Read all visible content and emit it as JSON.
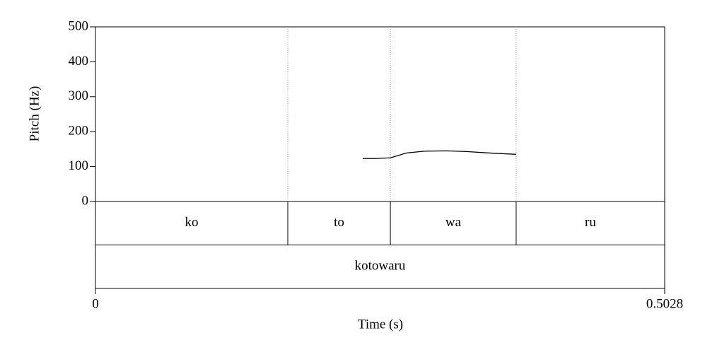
{
  "chart_data": {
    "type": "line",
    "xlabel": "Time (s)",
    "ylabel": "Pitch (Hz)",
    "xlim": [
      0,
      0.5028
    ],
    "xticks": [
      0,
      0.5028
    ],
    "ylim": [
      0,
      500
    ],
    "yticks": [
      0,
      100,
      200,
      300,
      400,
      500
    ],
    "series": [
      {
        "color": "#000000",
        "x": [
          0.2361,
          0.2467,
          0.2605,
          0.2748,
          0.2904,
          0.3092,
          0.3279,
          0.3466,
          0.3716
        ],
        "values": [
          123,
          123,
          125,
          139,
          144,
          145,
          143,
          139,
          135
        ]
      }
    ],
    "tiers": [
      {
        "intervals": [
          {
            "start": 0,
            "end": 0.1699,
            "label": "ko"
          },
          {
            "start": 0.1699,
            "end": 0.2605,
            "label": "to"
          },
          {
            "start": 0.2605,
            "end": 0.3716,
            "label": "wa"
          },
          {
            "start": 0.3716,
            "end": 0.5028,
            "label": "ru"
          }
        ]
      },
      {
        "intervals": [
          {
            "start": 0,
            "end": 0.5028,
            "label": "kotowaru"
          }
        ]
      }
    ]
  }
}
